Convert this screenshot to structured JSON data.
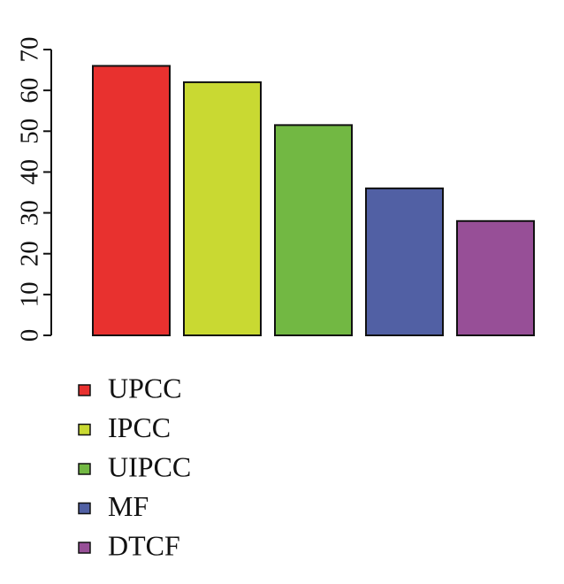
{
  "chart_data": {
    "type": "bar",
    "series": [
      {
        "name": "UPCC",
        "color": "#e8312f",
        "values": [
          66
        ]
      },
      {
        "name": "IPCC",
        "color": "#c9d932",
        "values": [
          62
        ]
      },
      {
        "name": "UIPCC",
        "color": "#72b843",
        "values": [
          51.5
        ]
      },
      {
        "name": "MF",
        "color": "#5160a4",
        "values": [
          36
        ]
      },
      {
        "name": "DTCF",
        "color": "#974f97",
        "values": [
          28
        ]
      }
    ],
    "ylim": [
      0,
      70
    ],
    "yticks": [
      0,
      10,
      20,
      30,
      40,
      50,
      60,
      70
    ],
    "grid": false,
    "legend": "bottom-left"
  }
}
